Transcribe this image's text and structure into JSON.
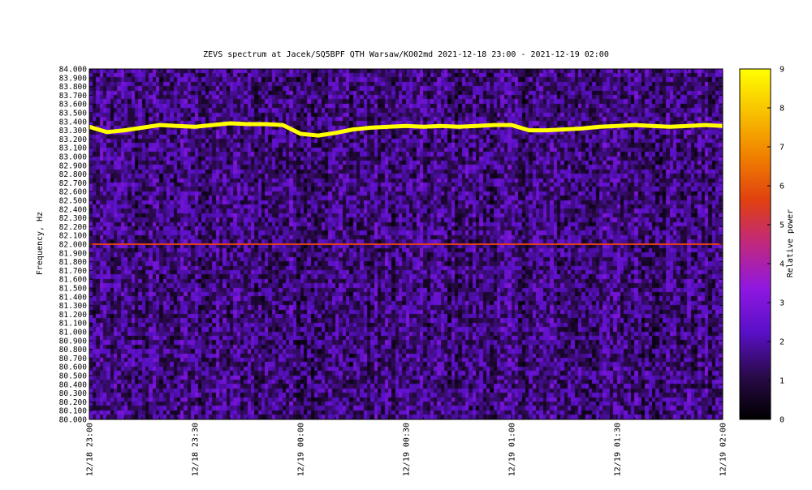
{
  "chart_data": {
    "type": "heatmap",
    "title": "ZEVS spectrum at Jacek/SQ5BPF QTH Warsaw/KO02md 2021-12-18 23:00 - 2021-12-19 02:00",
    "ylabel": "Frequency, Hz",
    "colorbar_label": "Relative power",
    "x_ticks": [
      "12/18 23:00",
      "12/18 23:30",
      "12/19 00:00",
      "12/19 00:30",
      "12/19 01:00",
      "12/19 01:30",
      "12/19 02:00"
    ],
    "y_ticks": [
      "80.000",
      "80.100",
      "80.200",
      "80.300",
      "80.400",
      "80.500",
      "80.600",
      "80.700",
      "80.800",
      "80.900",
      "81.000",
      "81.100",
      "81.200",
      "81.300",
      "81.400",
      "81.500",
      "81.600",
      "81.700",
      "81.800",
      "81.900",
      "82.000",
      "82.100",
      "82.200",
      "82.300",
      "82.400",
      "82.500",
      "82.600",
      "82.700",
      "82.800",
      "82.900",
      "83.000",
      "83.100",
      "83.200",
      "83.300",
      "83.400",
      "83.500",
      "83.600",
      "83.700",
      "83.800",
      "83.900",
      "84.000"
    ],
    "ylim": [
      80.0,
      84.0
    ],
    "colorbar_ticks": [
      "0",
      "1",
      "2",
      "3",
      "4",
      "5",
      "6",
      "7",
      "8",
      "9"
    ],
    "colorbar_range": [
      0,
      9
    ],
    "colormap": [
      "#000000",
      "#2a0a4a",
      "#5a10c8",
      "#9018e0",
      "#c02880",
      "#e04010",
      "#f08000",
      "#f8c000",
      "#ffff00"
    ],
    "grid": false,
    "series": [
      {
        "kind": "signal_trace",
        "x_minutes": [
          0,
          5,
          10,
          15,
          20,
          25,
          30,
          35,
          40,
          45,
          50,
          55,
          60,
          65,
          70,
          75,
          80,
          85,
          90,
          95,
          100,
          105,
          110,
          115,
          120,
          125,
          130,
          135,
          140,
          145,
          150,
          155,
          160,
          165,
          170,
          175,
          180
        ],
        "y_hz": [
          83.34,
          83.28,
          83.3,
          83.33,
          83.36,
          83.35,
          83.34,
          83.36,
          83.38,
          83.37,
          83.37,
          83.36,
          83.26,
          83.24,
          83.27,
          83.31,
          83.33,
          83.34,
          83.35,
          83.34,
          83.35,
          83.34,
          83.35,
          83.36,
          83.36,
          83.3,
          83.3,
          83.31,
          83.32,
          83.34,
          83.35,
          83.36,
          83.35,
          83.34,
          83.35,
          83.36,
          83.35
        ],
        "level": 9
      },
      {
        "kind": "constant_line",
        "y_hz": 82.0,
        "level": 5.5
      }
    ],
    "spectrum": {
      "time_bins": 180,
      "freq_bins": 80,
      "background_level": 1.6,
      "noise_note": "random speckle"
    }
  }
}
